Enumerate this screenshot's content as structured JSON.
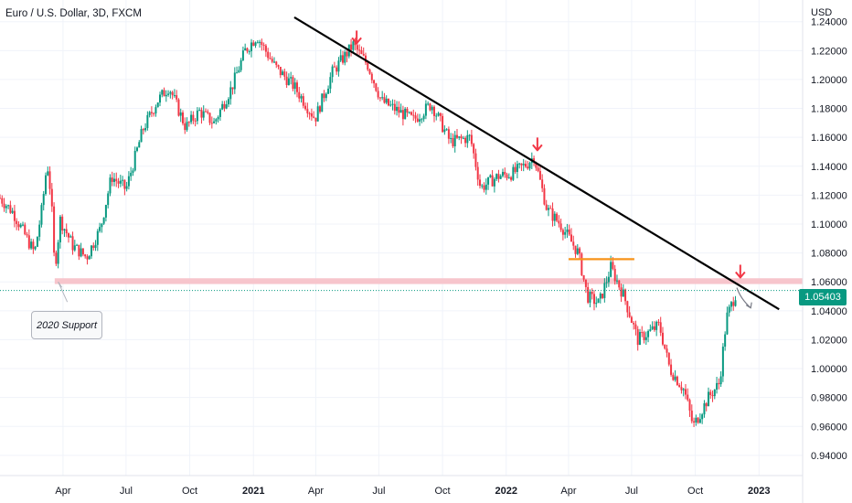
{
  "chart": {
    "title": "Euro / U.S. Dollar, 3D, FXCM",
    "price_axis_unit": "USD",
    "last_price": "1.05403",
    "support_label": "2020 Support"
  },
  "chart_data": {
    "type": "candlestick",
    "title": "Euro / U.S. Dollar, 3D, FXCM",
    "xlabel": "",
    "ylabel": "USD",
    "x_tick_labels": [
      "Apr",
      "Jul",
      "Oct",
      "2021",
      "Apr",
      "Jul",
      "Oct",
      "2022",
      "Apr",
      "Jul",
      "Oct",
      "2023"
    ],
    "x_tick_dates": [
      "2020-04",
      "2020-07",
      "2020-10",
      "2021-01",
      "2021-04",
      "2021-07",
      "2021-10",
      "2022-01",
      "2022-04",
      "2022-07",
      "2022-10",
      "2023-01"
    ],
    "y_tick_labels": [
      "1.24000",
      "1.22000",
      "1.20000",
      "1.18000",
      "1.16000",
      "1.14000",
      "1.12000",
      "1.10000",
      "1.08000",
      "1.06000",
      "1.04000",
      "1.02000",
      "1.00000",
      "0.98000",
      "0.96000",
      "0.94000"
    ],
    "ylim": [
      0.926,
      1.255
    ],
    "xlim": [
      "2020-01-01",
      "2023-03-05"
    ],
    "last_price": 1.05403,
    "price_path": [
      [
        "2020-01-01",
        1.118
      ],
      [
        "2020-01-20",
        1.108
      ],
      [
        "2020-02-12",
        1.087
      ],
      [
        "2020-02-20",
        1.08
      ],
      [
        "2020-03-02",
        1.112
      ],
      [
        "2020-03-09",
        1.143
      ],
      [
        "2020-03-15",
        1.118
      ],
      [
        "2020-03-20",
        1.068
      ],
      [
        "2020-03-28",
        1.103
      ],
      [
        "2020-04-15",
        1.085
      ],
      [
        "2020-05-05",
        1.077
      ],
      [
        "2020-05-25",
        1.097
      ],
      [
        "2020-06-10",
        1.133
      ],
      [
        "2020-07-01",
        1.124
      ],
      [
        "2020-07-25",
        1.165
      ],
      [
        "2020-08-15",
        1.185
      ],
      [
        "2020-09-01",
        1.195
      ],
      [
        "2020-09-25",
        1.167
      ],
      [
        "2020-10-15",
        1.178
      ],
      [
        "2020-11-05",
        1.17
      ],
      [
        "2020-12-01",
        1.195
      ],
      [
        "2020-12-20",
        1.22
      ],
      [
        "2021-01-06",
        1.23
      ],
      [
        "2021-02-01",
        1.209
      ],
      [
        "2021-03-01",
        1.195
      ],
      [
        "2021-03-31",
        1.173
      ],
      [
        "2021-04-25",
        1.205
      ],
      [
        "2021-05-25",
        1.224
      ],
      [
        "2021-06-15",
        1.21
      ],
      [
        "2021-07-05",
        1.185
      ],
      [
        "2021-08-20",
        1.172
      ],
      [
        "2021-09-15",
        1.183
      ],
      [
        "2021-10-12",
        1.157
      ],
      [
        "2021-11-10",
        1.16
      ],
      [
        "2021-11-25",
        1.125
      ],
      [
        "2021-12-20",
        1.133
      ],
      [
        "2022-01-10",
        1.135
      ],
      [
        "2022-02-01",
        1.142
      ],
      [
        "2022-02-10",
        1.147
      ],
      [
        "2022-03-01",
        1.11
      ],
      [
        "2022-03-20",
        1.1
      ],
      [
        "2022-04-15",
        1.08
      ],
      [
        "2022-04-28",
        1.05
      ],
      [
        "2022-05-15",
        1.045
      ],
      [
        "2022-06-01",
        1.07
      ],
      [
        "2022-06-20",
        1.05
      ],
      [
        "2022-07-10",
        1.02
      ],
      [
        "2022-08-10",
        1.03
      ],
      [
        "2022-08-25",
        1.0
      ],
      [
        "2022-09-15",
        0.985
      ],
      [
        "2022-09-28",
        0.96
      ],
      [
        "2022-10-20",
        0.98
      ],
      [
        "2022-11-05",
        0.99
      ],
      [
        "2022-11-15",
        1.035
      ],
      [
        "2022-11-30",
        1.054
      ]
    ],
    "annotations": [
      {
        "type": "trendline",
        "color": "#000000",
        "from": [
          "2021-03-01",
          1.243
        ],
        "to": [
          "2023-01-30",
          1.041
        ]
      },
      {
        "type": "horizontal_zone",
        "color": "#f7c5cc",
        "from": "2020-03-20",
        "to": "2023-03-05",
        "y": [
          1.0585,
          1.0625
        ]
      },
      {
        "type": "horizontal_line",
        "color": "#f7931a",
        "from": "2022-04-01",
        "to": "2022-07-05",
        "y": 1.0757
      },
      {
        "type": "price_line",
        "color": "#089981",
        "y": 1.05403
      },
      {
        "type": "arrow_marker",
        "color": "#f23645",
        "x": "2021-05-30",
        "y": 1.225
      },
      {
        "type": "arrow_marker",
        "color": "#f23645",
        "x": "2022-02-15",
        "y": 1.151
      },
      {
        "type": "arrow_marker",
        "color": "#f23645",
        "x": "2022-12-05",
        "y": 1.063
      },
      {
        "type": "arrow",
        "color": "#787b86",
        "from": [
          "2022-11-30",
          1.056
        ],
        "to": [
          "2022-12-20",
          1.042
        ]
      },
      {
        "type": "callout",
        "text": "2020 Support",
        "anchor": [
          "2020-03-25",
          1.06
        ]
      }
    ],
    "colors": {
      "up": "#089981",
      "down": "#f23645",
      "grid": "#f0f3fa",
      "axis_text": "#131722"
    }
  }
}
